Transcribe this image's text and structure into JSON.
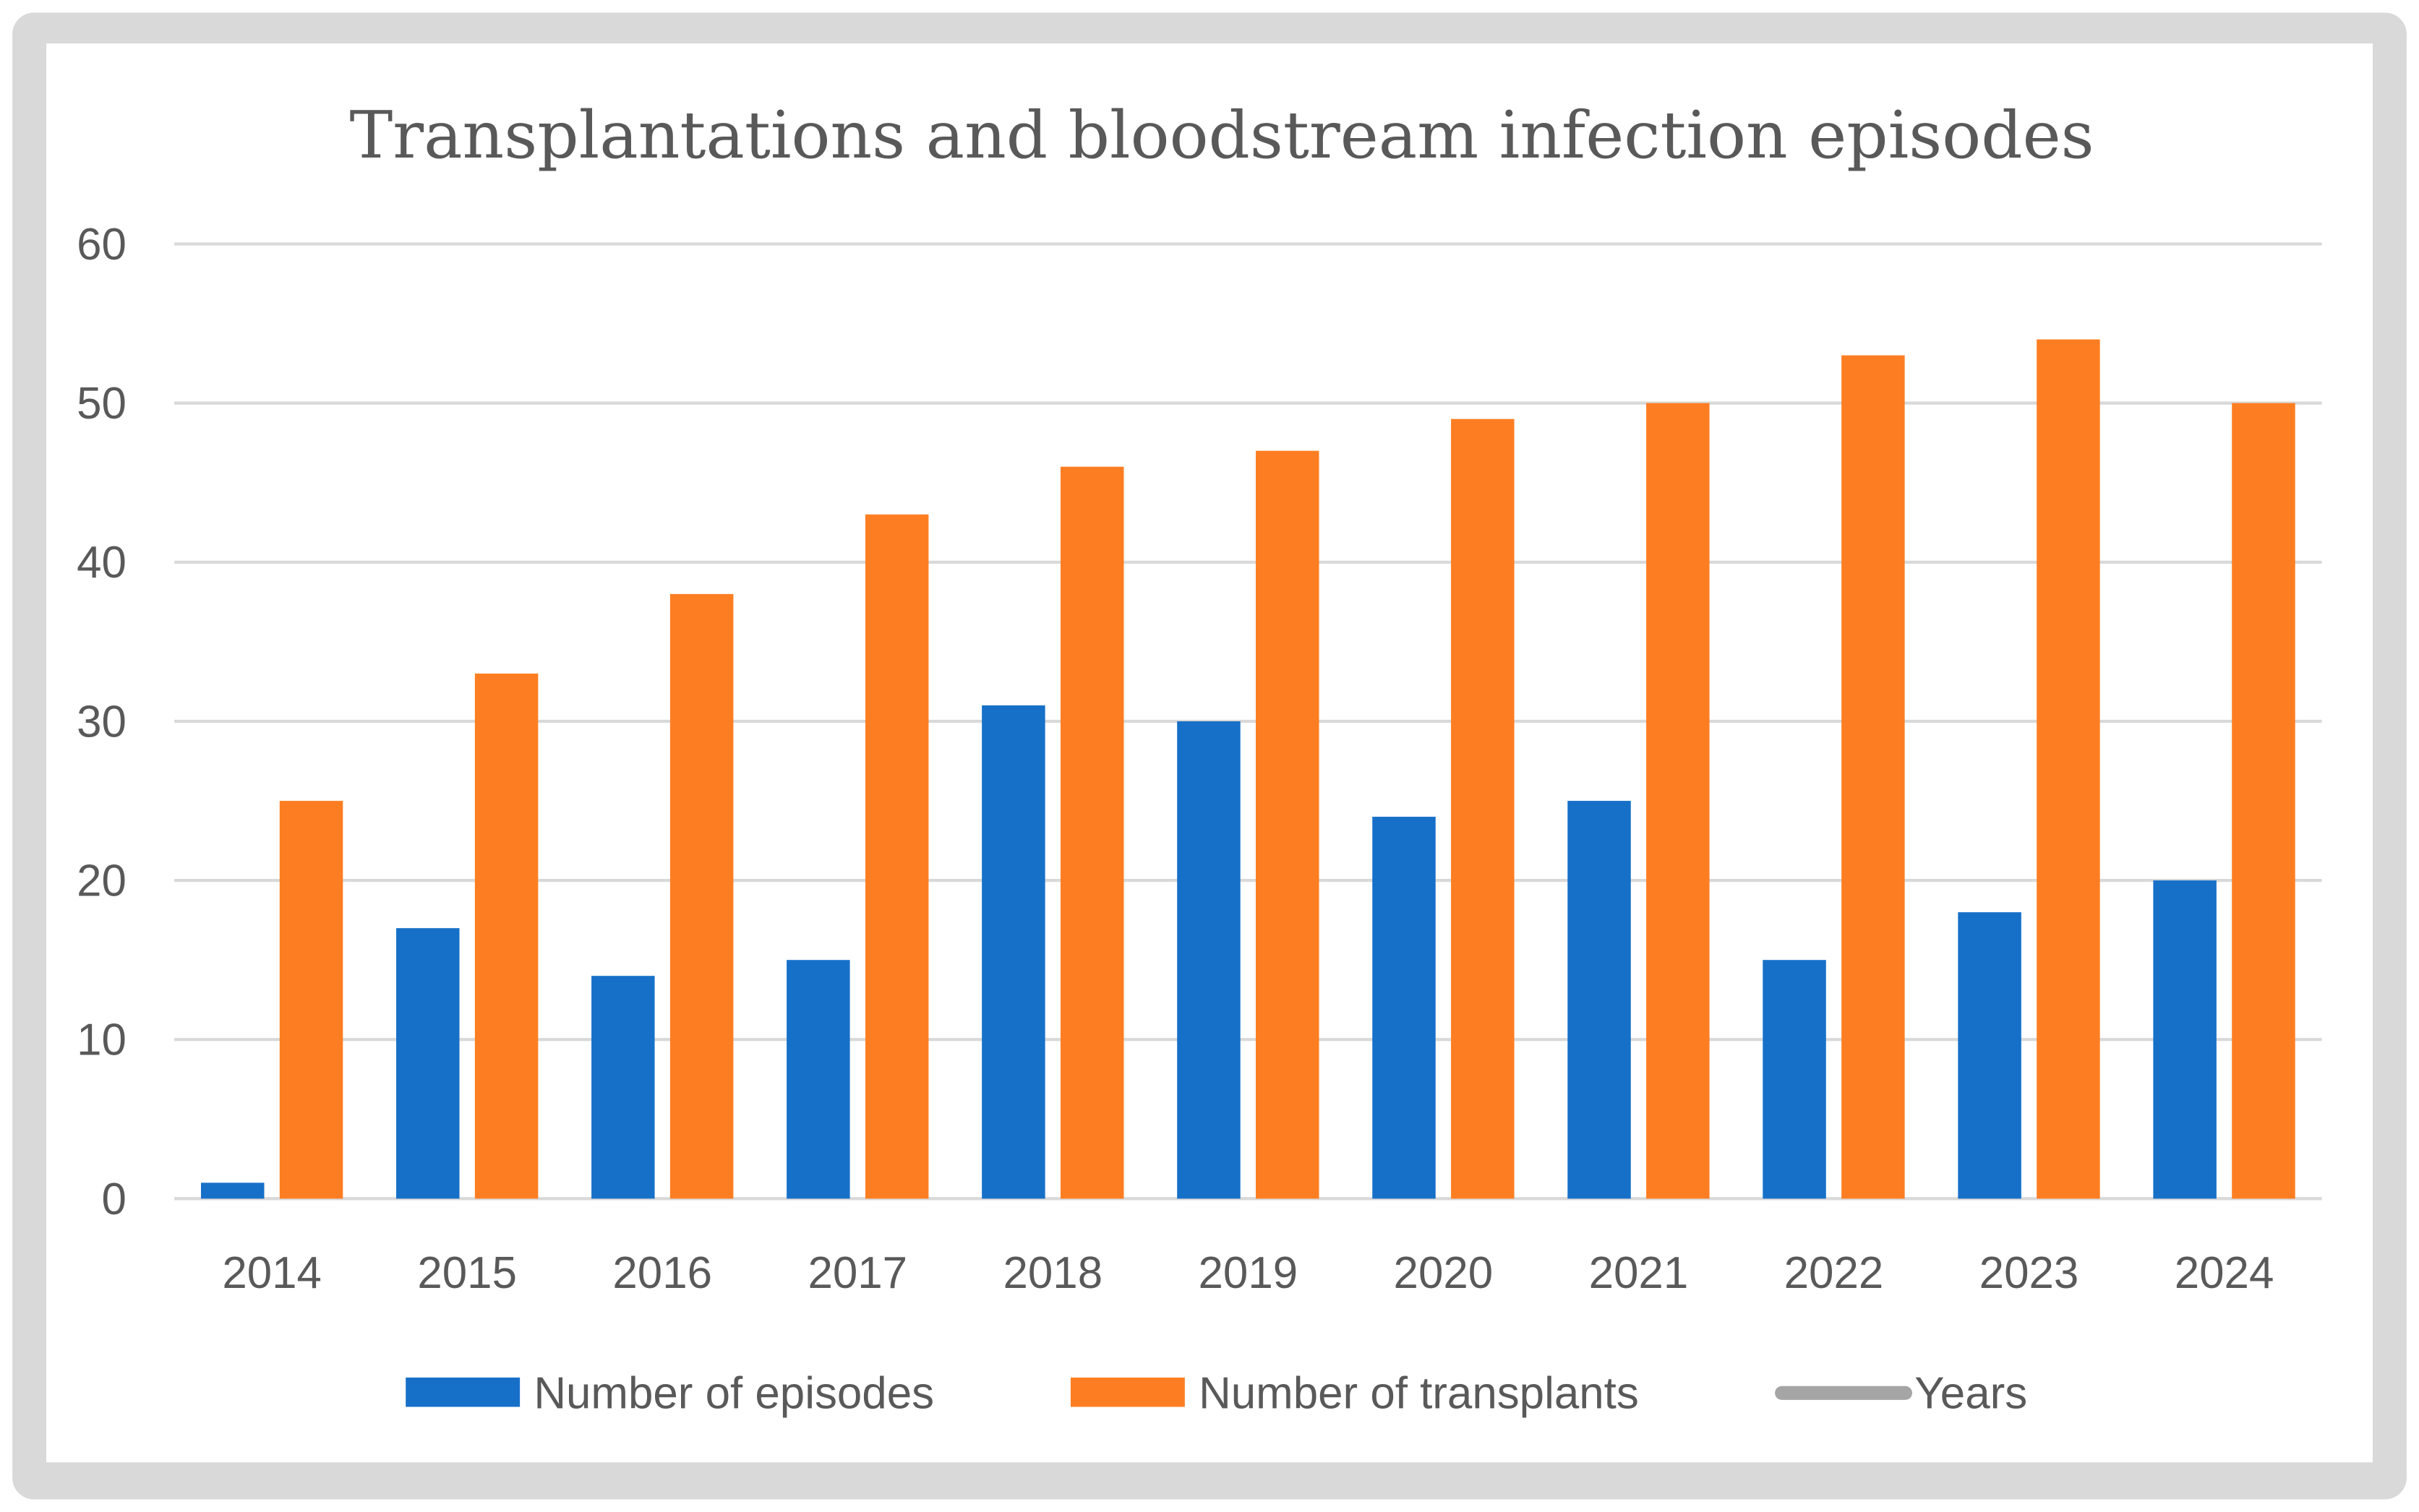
{
  "chart_data": {
    "type": "bar",
    "title": "Transplantations and bloodstream infection episodes",
    "xlabel": "",
    "ylabel": "",
    "categories": [
      "2014",
      "2015",
      "2016",
      "2017",
      "2018",
      "2019",
      "2020",
      "2021",
      "2022",
      "2023",
      "2024"
    ],
    "series": [
      {
        "name": "Number of episodes",
        "color": "#1670c8",
        "values": [
          1,
          17,
          14,
          15,
          31,
          30,
          24,
          25,
          15,
          18,
          20
        ]
      },
      {
        "name": "Number of transplants",
        "color": "#fd7e22",
        "values": [
          25,
          33,
          38,
          43,
          46,
          47,
          49,
          50,
          53,
          54,
          50
        ]
      }
    ],
    "legend_extra": {
      "name": "Years",
      "color": "#a5a5a5",
      "kind": "line"
    },
    "ylim": [
      0,
      60
    ],
    "yticks": [
      0,
      10,
      20,
      30,
      40,
      50,
      60
    ],
    "grid": true,
    "legend_position": "bottom"
  }
}
